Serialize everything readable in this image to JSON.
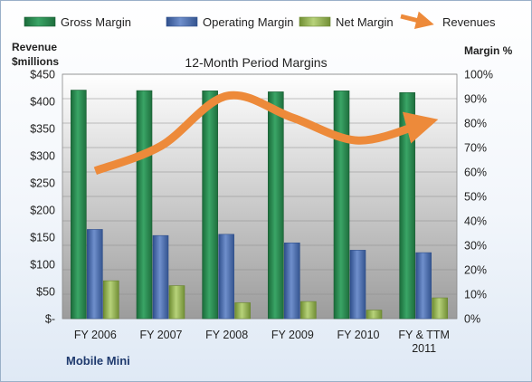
{
  "chart_data": {
    "type": "bar",
    "title": "12-Month Period Margins",
    "company": "Mobile Mini",
    "left_axis_title": [
      "Revenue",
      "$millions"
    ],
    "right_axis_title": "Margin %",
    "categories": [
      [
        "FY 2006"
      ],
      [
        "FY 2007"
      ],
      [
        "FY 2008"
      ],
      [
        "FY 2009"
      ],
      [
        "FY 2010"
      ],
      [
        "FY & TTM",
        "2011"
      ]
    ],
    "left_ticks": [
      "$-",
      "$50",
      "$100",
      "$150",
      "$200",
      "$250",
      "$300",
      "$350",
      "$400",
      "$450"
    ],
    "right_ticks": [
      "0%",
      "10%",
      "20%",
      "30%",
      "40%",
      "50%",
      "60%",
      "70%",
      "80%",
      "90%",
      "100%"
    ],
    "ylim_left": [
      0,
      450
    ],
    "ylim_right": [
      0,
      100
    ],
    "series": [
      {
        "name": "Gross Margin",
        "axis": "right",
        "kind": "bar",
        "color": "#2e8b57",
        "values": [
          93.5,
          93.3,
          93.2,
          92.8,
          93.2,
          92.5
        ]
      },
      {
        "name": "Operating Margin",
        "axis": "right",
        "kind": "bar",
        "color": "#4f6fae",
        "values": [
          36.5,
          34.0,
          34.5,
          31.0,
          28.0,
          27.0
        ]
      },
      {
        "name": "Net Margin",
        "axis": "right",
        "kind": "bar",
        "color": "#9bbb59",
        "values": [
          15.5,
          13.5,
          6.5,
          7.0,
          3.5,
          8.5
        ]
      },
      {
        "name": "Revenues",
        "axis": "left",
        "kind": "line",
        "color": "#ed8a3a",
        "values": [
          272,
          318,
          410,
          370,
          328,
          360
        ]
      }
    ],
    "grid": true,
    "legend_position": "top"
  }
}
